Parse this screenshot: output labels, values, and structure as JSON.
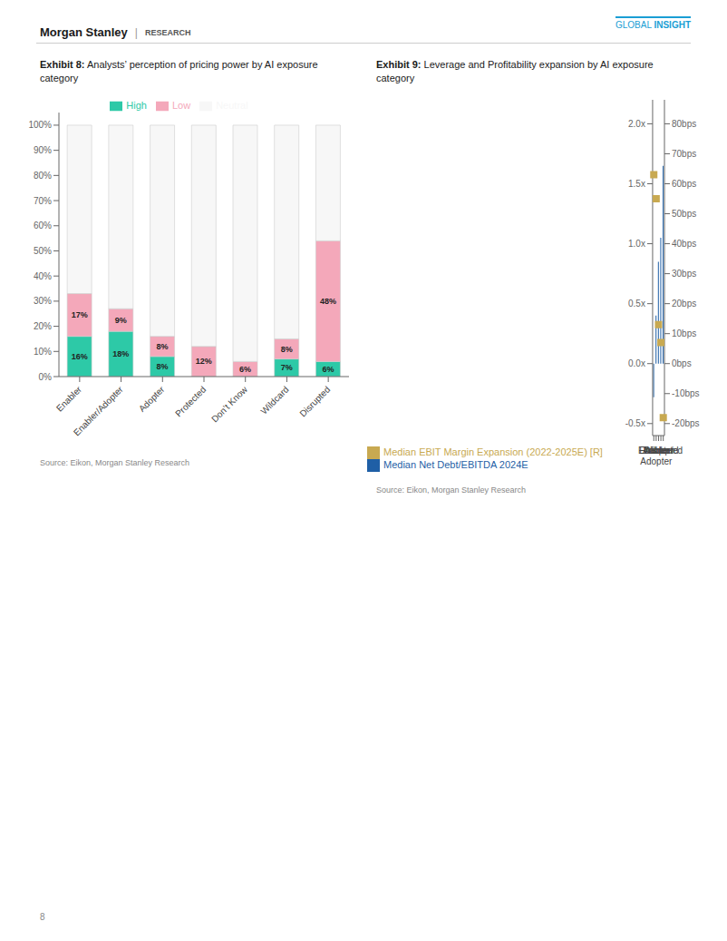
{
  "chart_data": [
    {
      "type": "bar",
      "stacked": true,
      "title": "Exhibit 8: Analysts’ perception of pricing power by AI exposure\ncategory",
      "categories": [
        "Enabler",
        "Enabler/Adopter",
        "Adopter",
        "Protected",
        "Don’t Know",
        "Wildcard",
        "Disrupted"
      ],
      "series": [
        {
          "name": "High",
          "color": "#2dc9a7",
          "values": [
            16,
            18,
            8,
            0,
            0,
            7,
            6
          ],
          "data_labels": true,
          "value_labels": [
            "16%",
            "18%",
            "8%",
            null,
            null,
            "7%",
            "6%"
          ]
        },
        {
          "name": "Low",
          "color": "#f4a8ba",
          "values": [
            17,
            9,
            8,
            12,
            6,
            8,
            48
          ],
          "data_labels": true,
          "value_labels": [
            "17%",
            "9%",
            "8%",
            "12%",
            "6%",
            "8%",
            "48%"
          ]
        },
        {
          "name": "Neutral",
          "color": "#f7f7f7",
          "values": [
            67,
            73,
            84,
            88,
            94,
            85,
            46
          ]
        }
      ],
      "ylim": [
        0,
        105
      ],
      "yticks": [
        {
          "value": 0,
          "label": "0%"
        },
        {
          "value": 10,
          "label": "10%"
        },
        {
          "value": 20,
          "label": "20%"
        },
        {
          "value": 30,
          "label": "30%"
        },
        {
          "value": 40,
          "label": "40%"
        },
        {
          "value": 50,
          "label": "50%"
        },
        {
          "value": 60,
          "label": "60%"
        },
        {
          "value": 70,
          "label": "70%"
        },
        {
          "value": 80,
          "label": "80%"
        },
        {
          "value": 90,
          "label": "90%"
        },
        {
          "value": 100,
          "label": "100%"
        }
      ],
      "grid": false,
      "legend": "top",
      "annotations": [
        "Morgan Stanley",
        "|",
        "RESEARCH",
        "GLOBAL",
        "INSIGHT",
        "Source: Eikon, Morgan Stanley Research"
      ]
    },
    {
      "type": "bar",
      "title": "Exhibit 9: Leverage and Profitability expansion by AI exposure\ncategory",
      "categories": [
        "Enabler",
        "Enabler/\nAdopter",
        "Adopter",
        "Wildcard",
        "Disrupted"
      ],
      "series": [
        {
          "name": "Median Net Debt/EBITDA 2024E",
          "type": "bar",
          "color": "#1f5fa6",
          "values": [
            -0.28,
            0.4,
            0.85,
            1.05,
            1.65
          ]
        },
        {
          "name": "Median EBIT Margin Expansion (2022-2025E) [R]",
          "type": "scatter",
          "marker": "square",
          "color": "#c8a951",
          "axis": "y2",
          "values": [
            63,
            55,
            13,
            7,
            -18
          ]
        }
      ],
      "ylim": [
        -0.6,
        2.2
      ],
      "yticks": [
        {
          "value": -0.5,
          "label": "-0.5x"
        },
        {
          "value": 0.0,
          "label": "0.0x"
        },
        {
          "value": 0.5,
          "label": "0.5x"
        },
        {
          "value": 1.0,
          "label": "1.0x"
        },
        {
          "value": 1.5,
          "label": "1.5x"
        },
        {
          "value": 2.0,
          "label": "2.0x"
        }
      ],
      "y2lim": [
        -24,
        88
      ],
      "y2ticks": [
        {
          "value": -20,
          "label": "-20bps"
        },
        {
          "value": -10,
          "label": "-10bps"
        },
        {
          "value": 0,
          "label": "0bps"
        },
        {
          "value": 10,
          "label": "10bps"
        },
        {
          "value": 20,
          "label": "20bps"
        },
        {
          "value": 30,
          "label": "30bps"
        },
        {
          "value": 40,
          "label": "40bps"
        },
        {
          "value": 50,
          "label": "50bps"
        },
        {
          "value": 60,
          "label": "60bps"
        },
        {
          "value": 70,
          "label": "70bps"
        },
        {
          "value": 80,
          "label": "80bps"
        }
      ],
      "grid": false,
      "legend": "bottom",
      "annotations": [
        "Source: Eikon, Morgan Stanley Research",
        "8"
      ]
    }
  ]
}
